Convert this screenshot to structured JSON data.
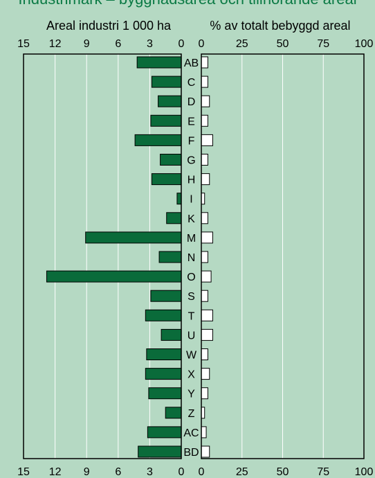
{
  "title": "Industrimark – byggnadsarea och tillhörande areal",
  "colors": {
    "background": "#b5d9c3",
    "title": "#0b7a45",
    "left_bar": "#0a6b3a",
    "right_bar": "#ffffff",
    "grid": "#ffffff",
    "frame": "#000000"
  },
  "chart_data": [
    {
      "type": "bar",
      "orientation": "horizontal",
      "direction": "right-to-left",
      "title": "Areal industri 1 000 ha",
      "xlim": [
        0,
        15
      ],
      "ticks": [
        "15",
        "12",
        "9",
        "6",
        "3",
        "0"
      ],
      "tick_values": [
        15,
        12,
        9,
        6,
        3,
        0
      ],
      "grid": true,
      "categories": [
        "AB",
        "C",
        "D",
        "E",
        "F",
        "G",
        "H",
        "I",
        "K",
        "M",
        "N",
        "O",
        "S",
        "T",
        "U",
        "W",
        "X",
        "Y",
        "Z",
        "AC",
        "BD"
      ],
      "values": [
        4.2,
        2.8,
        2.2,
        2.9,
        4.4,
        2.0,
        2.8,
        0.4,
        1.4,
        9.1,
        2.1,
        12.8,
        2.9,
        3.4,
        1.9,
        3.3,
        3.4,
        3.1,
        1.5,
        3.2,
        4.1
      ]
    },
    {
      "type": "bar",
      "orientation": "horizontal",
      "title": "% av totalt bebyggd areal",
      "xlim": [
        0,
        100
      ],
      "ticks": [
        "0",
        "25",
        "50",
        "75",
        "100"
      ],
      "tick_values": [
        0,
        25,
        50,
        75,
        100
      ],
      "grid": true,
      "categories": [
        "AB",
        "C",
        "D",
        "E",
        "F",
        "G",
        "H",
        "I",
        "K",
        "M",
        "N",
        "O",
        "S",
        "T",
        "U",
        "W",
        "X",
        "Y",
        "Z",
        "AC",
        "BD"
      ],
      "values": [
        4,
        4,
        5,
        4,
        7,
        4,
        5,
        2,
        4,
        7,
        4,
        6,
        4,
        7,
        7,
        4,
        5,
        4,
        2,
        3,
        5
      ]
    }
  ]
}
